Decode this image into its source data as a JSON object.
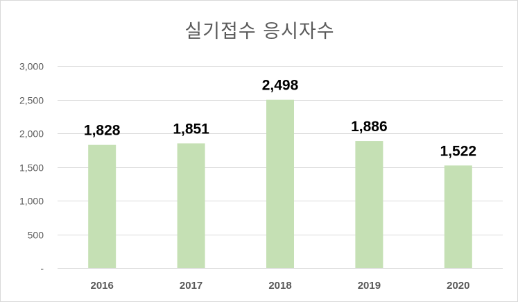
{
  "chart_data": {
    "type": "bar",
    "title": "실기접수 응시자수",
    "categories": [
      "2016",
      "2017",
      "2018",
      "2019",
      "2020"
    ],
    "values": [
      1828,
      1851,
      2498,
      1886,
      1522
    ],
    "data_labels": [
      "1,828",
      "1,851",
      "2,498",
      "1,886",
      "1,522"
    ],
    "ylim": [
      0,
      3000
    ],
    "yticks": [
      0,
      500,
      1000,
      1500,
      2000,
      2500,
      3000
    ],
    "ytick_labels": [
      "-",
      "500",
      "1,000",
      "1,500",
      "2,000",
      "2,500",
      "3,000"
    ],
    "xlabel": "",
    "ylabel": "",
    "grid": true,
    "legend": "none",
    "colors": {
      "bar": "#c5e0b4",
      "grid": "#d9d9d9",
      "axis": "#d9d9d9",
      "tick_text": "#595959",
      "data_label": "#000000"
    }
  }
}
